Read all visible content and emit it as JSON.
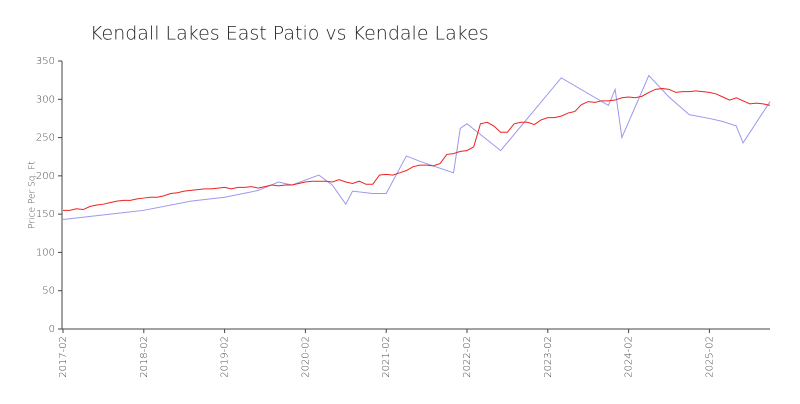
{
  "chart_data": {
    "type": "line",
    "title": "Kendall Lakes East Patio vs Kendale Lakes",
    "ylabel": "Price Per Sq. Ft",
    "xlim": [
      "2017-02",
      "2025-11"
    ],
    "xticks": [
      "2017-02",
      "2018-02",
      "2019-02",
      "2020-02",
      "2021-02",
      "2022-02",
      "2023-02",
      "2024-02",
      "2025-02"
    ],
    "ylim": [
      0,
      350
    ],
    "yticks": [
      0,
      50,
      100,
      150,
      200,
      250,
      300,
      350
    ],
    "grid": false,
    "series": [
      {
        "color": "#9999ee",
        "x": [
          "2017-02",
          "2018-02",
          "2018-09",
          "2019-02",
          "2019-07",
          "2019-10",
          "2019-12",
          "2020-04",
          "2020-06",
          "2020-08",
          "2020-09",
          "2020-12",
          "2021-02",
          "2021-05",
          "2021-07",
          "2021-12",
          "2022-01",
          "2022-02",
          "2022-07",
          "2023-04",
          "2023-11",
          "2023-12",
          "2024-01",
          "2024-05",
          "2024-08",
          "2024-11",
          "2025-02",
          "2025-04",
          "2025-06",
          "2025-07",
          "2025-11"
        ],
        "values": [
          143,
          155,
          167,
          172,
          181,
          192,
          188,
          201,
          188,
          163,
          180,
          177,
          177,
          226,
          219,
          204,
          262,
          268,
          233,
          328,
          292,
          313,
          250,
          331,
          303,
          280,
          275,
          271,
          265,
          243,
          297
        ]
      },
      {
        "color": "#ee2222",
        "x": [
          "2017-02",
          "2017-03",
          "2017-04",
          "2017-05",
          "2017-06",
          "2017-07",
          "2017-08",
          "2017-09",
          "2017-10",
          "2017-11",
          "2017-12",
          "2018-01",
          "2018-02",
          "2018-03",
          "2018-04",
          "2018-05",
          "2018-06",
          "2018-07",
          "2018-08",
          "2018-09",
          "2018-10",
          "2018-11",
          "2018-12",
          "2019-01",
          "2019-02",
          "2019-03",
          "2019-04",
          "2019-05",
          "2019-06",
          "2019-07",
          "2019-08",
          "2019-09",
          "2019-10",
          "2019-11",
          "2019-12",
          "2020-01",
          "2020-02",
          "2020-03",
          "2020-04",
          "2020-05",
          "2020-06",
          "2020-07",
          "2020-08",
          "2020-09",
          "2020-10",
          "2020-11",
          "2020-12",
          "2021-01",
          "2021-02",
          "2021-03",
          "2021-04",
          "2021-05",
          "2021-06",
          "2021-07",
          "2021-08",
          "2021-09",
          "2021-10",
          "2021-11",
          "2021-12",
          "2022-01",
          "2022-02",
          "2022-03",
          "2022-04",
          "2022-05",
          "2022-06",
          "2022-07",
          "2022-08",
          "2022-09",
          "2022-10",
          "2022-11",
          "2022-12",
          "2023-01",
          "2023-02",
          "2023-03",
          "2023-04",
          "2023-05",
          "2023-06",
          "2023-07",
          "2023-08",
          "2023-09",
          "2023-10",
          "2023-11",
          "2023-12",
          "2024-01",
          "2024-02",
          "2024-03",
          "2024-04",
          "2024-05",
          "2024-06",
          "2024-07",
          "2024-08",
          "2024-09",
          "2024-10",
          "2024-11",
          "2024-12",
          "2025-01",
          "2025-02",
          "2025-03",
          "2025-04",
          "2025-05",
          "2025-06",
          "2025-07",
          "2025-08",
          "2025-09",
          "2025-10",
          "2025-11"
        ],
        "values": [
          155,
          155,
          157,
          156,
          160,
          162,
          163,
          165,
          167,
          168,
          168,
          170,
          171,
          172,
          172,
          174,
          177,
          178,
          180,
          181,
          182,
          183,
          183,
          184,
          185,
          183,
          185,
          185,
          186,
          184,
          186,
          188,
          187,
          188,
          188,
          190,
          192,
          193,
          193,
          193,
          192,
          195,
          192,
          190,
          193,
          189,
          189,
          201,
          202,
          201,
          204,
          207,
          212,
          214,
          214,
          213,
          216,
          228,
          229,
          232,
          233,
          238,
          268,
          270,
          265,
          257,
          257,
          268,
          270,
          270,
          267,
          273,
          276,
          276,
          278,
          282,
          284,
          293,
          297,
          296,
          298,
          298,
          299,
          302,
          303,
          302,
          304,
          309,
          313,
          314,
          313,
          309,
          310,
          310,
          311,
          310,
          309,
          307,
          303,
          299,
          302,
          298,
          294,
          295,
          294,
          292
        ]
      }
    ]
  }
}
